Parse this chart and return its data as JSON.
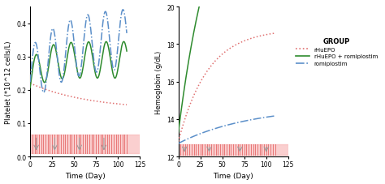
{
  "xlim": [
    0,
    125
  ],
  "left_ylim": [
    0.0,
    0.45
  ],
  "right_ylim": [
    12,
    20
  ],
  "left_yticks": [
    0.0,
    0.1,
    0.2,
    0.3,
    0.4
  ],
  "right_yticks": [
    12,
    14,
    16,
    18,
    20
  ],
  "xticks": [
    0,
    25,
    50,
    75,
    100,
    125
  ],
  "xlabel": "Time (Day)",
  "left_ylabel": "Platelet (*10^12 cells/L)",
  "right_ylabel": "Hemoglobin (g/dL)",
  "legend_title": "GROUP",
  "legend_entries": [
    "rHuEPO",
    "rHuEPO + romiplostim",
    "romiplostim"
  ],
  "colors": {
    "rhuEPO": "#e07070",
    "rhuEPO_romi": "#2e8b2e",
    "romiplostim": "#5b8fc9"
  },
  "dosing_line_color": "#e05050",
  "dosing_bar_color": "#f8b0b0",
  "background_color": "#ffffff",
  "dose_interval": 2.5,
  "dose_arrow_days": [
    7,
    28,
    56,
    84
  ],
  "dose_arrow_days2": [
    7,
    35,
    70,
    100
  ]
}
